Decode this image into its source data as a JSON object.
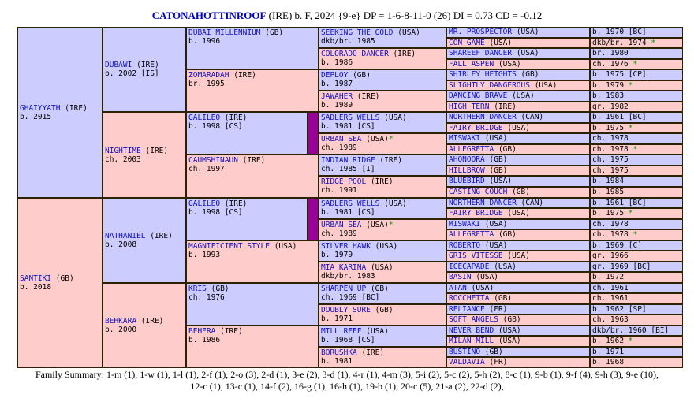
{
  "header": {
    "horse_name": "CATONAHOTTINROOF",
    "details": "(IRE) b. F, 2024 {9-e} DP = 1-6-8-11-0 (26) DI = 0.73   CD = -0.12"
  },
  "gen1": [
    {
      "name": "GHAIYYATH",
      "country": "(IRE)",
      "info": "b. 2015",
      "sex": "m"
    },
    {
      "name": "SANTIKI",
      "country": "(GB)",
      "info": "b. 2018",
      "sex": "f"
    }
  ],
  "gen2": [
    {
      "name": "DUBAWI",
      "country": "(IRE)",
      "info": "b. 2002 [IS]",
      "sex": "m"
    },
    {
      "name": "NIGHTIME",
      "country": "(IRE)",
      "info": "ch. 2003",
      "sex": "f"
    },
    {
      "name": "NATHANIEL",
      "country": "(IRE)",
      "info": "b. 2008",
      "sex": "m"
    },
    {
      "name": "BEHKARA",
      "country": "(IRE)",
      "info": "b. 2000",
      "sex": "f"
    }
  ],
  "gen3": [
    {
      "name": "DUBAI MILLENNIUM",
      "country": "(GB)",
      "info": "b. 1996",
      "sex": "m"
    },
    {
      "name": "ZOMARADAH",
      "country": "(IRE)",
      "info": "br. 1995",
      "sex": "f"
    },
    {
      "name": "GALILEO",
      "country": "(IRE)",
      "info": "b. 1998 [CS]",
      "sex": "m",
      "inbred": true
    },
    {
      "name": "CAUMSHINAUN",
      "country": "(IRE)",
      "info": "ch. 1997",
      "sex": "f"
    },
    {
      "name": "GALILEO",
      "country": "(IRE)",
      "info": "b. 1998 [CS]",
      "sex": "m",
      "inbred": true
    },
    {
      "name": "MAGNIFICIENT STYLE",
      "country": "(USA)",
      "info": "b. 1993",
      "sex": "f"
    },
    {
      "name": "KRIS",
      "country": "(GB)",
      "info": "ch. 1976",
      "sex": "m"
    },
    {
      "name": "BEHERA",
      "country": "(IRE)",
      "info": "b. 1986",
      "sex": "f"
    }
  ],
  "gen4": [
    {
      "name": "SEEKING THE GOLD",
      "country": "(USA)",
      "info": "dkb/br. 1985",
      "sex": "m"
    },
    {
      "name": "COLORADO DANCER",
      "country": "(IRE)",
      "info": "b. 1986",
      "sex": "f"
    },
    {
      "name": "DEPLOY",
      "country": "(GB)",
      "info": "b. 1987",
      "sex": "m"
    },
    {
      "name": "JAWAHER",
      "country": "(IRE)",
      "info": "b. 1989",
      "sex": "f"
    },
    {
      "name": "SADLERS WELLS",
      "country": "(USA)",
      "info": "b. 1981 [CS]",
      "sex": "m"
    },
    {
      "name": "URBAN SEA",
      "country": "(USA)",
      "star": "*",
      "info": "ch. 1989",
      "sex": "f"
    },
    {
      "name": "INDIAN RIDGE",
      "country": "(IRE)",
      "info": "ch. 1985 [I]",
      "sex": "m"
    },
    {
      "name": "RIDGE POOL",
      "country": "(IRE)",
      "info": "ch. 1991",
      "sex": "f"
    },
    {
      "name": "SADLERS WELLS",
      "country": "(USA)",
      "info": "b. 1981 [CS]",
      "sex": "m"
    },
    {
      "name": "URBAN SEA",
      "country": "(USA)",
      "star": "*",
      "info": "ch. 1989",
      "sex": "f"
    },
    {
      "name": "SILVER HAWK",
      "country": "(USA)",
      "info": "b. 1979",
      "sex": "m"
    },
    {
      "name": "MIA KARINA",
      "country": "(USA)",
      "info": "dkb/br. 1983",
      "sex": "f"
    },
    {
      "name": "SHARPEN UP",
      "country": "(GB)",
      "info": "ch. 1969 [BC]",
      "sex": "m"
    },
    {
      "name": "DOUBLY SURE",
      "country": "(GB)",
      "info": "b. 1971",
      "sex": "f"
    },
    {
      "name": "MILL REEF",
      "country": "(USA)",
      "info": "b. 1968 [CS]",
      "sex": "m"
    },
    {
      "name": "BORUSHKA",
      "country": "(IRE)",
      "info": "b. 1981",
      "sex": "f"
    }
  ],
  "gen5": [
    {
      "name": "MR. PROSPECTOR",
      "country": "(USA)",
      "info": "b. 1970 [BC]",
      "sex": "m"
    },
    {
      "name": "CON GAME",
      "country": "(USA)",
      "info": "dkb/br. 1974",
      "star": "*",
      "sex": "f"
    },
    {
      "name": "SHAREEF DANCER",
      "country": "(USA)",
      "info": "br. 1980",
      "sex": "m"
    },
    {
      "name": "FALL ASPEN",
      "country": "(USA)",
      "info": "ch. 1976",
      "star": "*",
      "sex": "f"
    },
    {
      "name": "SHIRLEY HEIGHTS",
      "country": "(GB)",
      "info": "b. 1975 [CP]",
      "sex": "m"
    },
    {
      "name": "SLIGHTLY DANGEROUS",
      "country": "(USA)",
      "info": "b. 1979",
      "star": "*",
      "sex": "f"
    },
    {
      "name": "DANCING BRAVE",
      "country": "(USA)",
      "info": "b. 1983",
      "sex": "m"
    },
    {
      "name": "HIGH TERN",
      "country": "(IRE)",
      "info": "gr. 1982",
      "sex": "f"
    },
    {
      "name": "NORTHERN DANCER",
      "country": "(CAN)",
      "info": "b. 1961 [BC]",
      "sex": "m"
    },
    {
      "name": "FAIRY BRIDGE",
      "country": "(USA)",
      "info": "b. 1975",
      "star": "*",
      "sex": "f"
    },
    {
      "name": "MISWAKI",
      "country": "(USA)",
      "info": "ch. 1978",
      "sex": "m"
    },
    {
      "name": "ALLEGRETTA",
      "country": "(GB)",
      "info": "ch. 1978",
      "star": "*",
      "sex": "f"
    },
    {
      "name": "AHONOORA",
      "country": "(GB)",
      "info": "ch. 1975",
      "sex": "m"
    },
    {
      "name": "HILLBROW",
      "country": "(GB)",
      "info": "ch. 1975",
      "sex": "f"
    },
    {
      "name": "BLUEBIRD",
      "country": "(USA)",
      "info": "b. 1984",
      "sex": "m"
    },
    {
      "name": "CASTING COUCH",
      "country": "(GB)",
      "info": "b. 1985",
      "sex": "f"
    },
    {
      "name": "NORTHERN DANCER",
      "country": "(CAN)",
      "info": "b. 1961 [BC]",
      "sex": "m"
    },
    {
      "name": "FAIRY BRIDGE",
      "country": "(USA)",
      "info": "b. 1975",
      "star": "*",
      "sex": "f"
    },
    {
      "name": "MISWAKI",
      "country": "(USA)",
      "info": "ch. 1978",
      "sex": "m"
    },
    {
      "name": "ALLEGRETTA",
      "country": "(GB)",
      "info": "ch. 1978",
      "star": "*",
      "sex": "f"
    },
    {
      "name": "ROBERTO",
      "country": "(USA)",
      "info": "b. 1969 [C]",
      "sex": "m"
    },
    {
      "name": "GRIS VITESSE",
      "country": "(USA)",
      "info": "gr. 1966",
      "sex": "f"
    },
    {
      "name": "ICECAPADE",
      "country": "(USA)",
      "info": "gr. 1969 [BC]",
      "sex": "m"
    },
    {
      "name": "BASIN",
      "country": "(USA)",
      "info": "b. 1972",
      "sex": "f"
    },
    {
      "name": "ATAN",
      "country": "(USA)",
      "info": "ch. 1961",
      "sex": "m"
    },
    {
      "name": "ROCCHETTA",
      "country": "(GB)",
      "info": "ch. 1961",
      "sex": "f"
    },
    {
      "name": "RELIANCE",
      "country": "(FR)",
      "info": "b. 1962 [SP]",
      "sex": "m"
    },
    {
      "name": "SOFT ANGELS",
      "country": "(GB)",
      "info": "ch. 1963",
      "sex": "f"
    },
    {
      "name": "NEVER BEND",
      "country": "(USA)",
      "info": "dkb/br. 1960 [BI]",
      "sex": "m"
    },
    {
      "name": "MILAN MILL",
      "country": "(USA)",
      "info": "b. 1962",
      "star": "*",
      "sex": "f"
    },
    {
      "name": "BUSTINO",
      "country": "(GB)",
      "info": "b. 1971",
      "sex": "m"
    },
    {
      "name": "VALDAVIA",
      "country": "(FR)",
      "info": "b. 1968",
      "sex": "f"
    }
  ],
  "family_summary": "Family Summary: 1-m (1), 1-w (1), 1-l (1), 2-f (1), 2-o (3), 2-d (1), 3-e (2), 3-d (1), 4-r (1), 4-m (3), 5-i (2), 5-c (2), 5-h (2), 8-c (1), 9-b (1), 9-f (4), 9-h (3), 9-e (10), 12-c (1), 13-c (1), 14-f (2), 16-g (1), 16-h (1), 19-b (1), 20-c (5), 21-a (2), 22-d (2),"
}
